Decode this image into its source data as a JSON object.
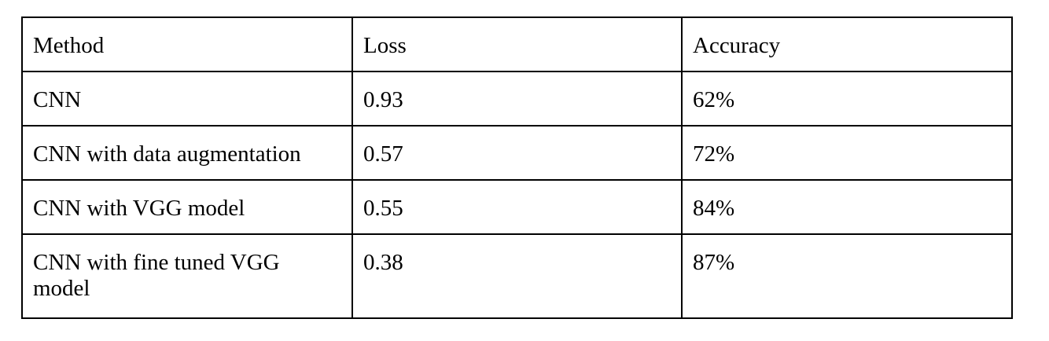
{
  "table": {
    "headers": [
      "Method",
      "Loss",
      "Accuracy"
    ],
    "rows": [
      [
        "CNN",
        "0.93",
        "62%"
      ],
      [
        "CNN with data augmentation",
        "0.57",
        "72%"
      ],
      [
        "CNN with VGG model",
        "0.55",
        "84%"
      ],
      [
        "CNN with fine tuned VGG model",
        "0.38",
        "87%"
      ]
    ]
  }
}
